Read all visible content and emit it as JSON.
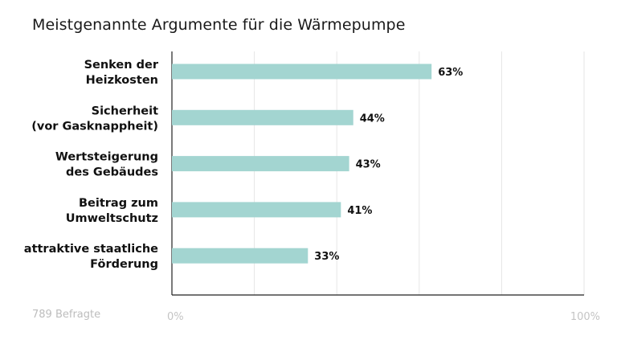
{
  "chart_data": {
    "type": "bar",
    "orientation": "horizontal",
    "title": "Meistgenannte Argumente für die Wärmepumpe",
    "categories": [
      [
        "Senken der",
        "Heizkosten"
      ],
      [
        "Sicherheit",
        "(vor Gasknappheit)"
      ],
      [
        "Wertsteigerung",
        "des Gebäudes"
      ],
      [
        "Beitrag zum",
        "Umweltschutz"
      ],
      [
        "attraktive staatliche",
        "Förderung"
      ]
    ],
    "values": [
      63,
      44,
      43,
      41,
      33
    ],
    "value_labels": [
      "63%",
      "44%",
      "43%",
      "41%",
      "33%"
    ],
    "xlim": [
      0,
      100
    ],
    "x_tick_labels": [
      "0%",
      "100%"
    ],
    "grid": true,
    "bar_color": "#a3d5d1",
    "grid_color": "#e6e6e6",
    "axis_color": "#222222",
    "tick_label_color": "#c4c4c4"
  },
  "footnote": "789 Befragte"
}
